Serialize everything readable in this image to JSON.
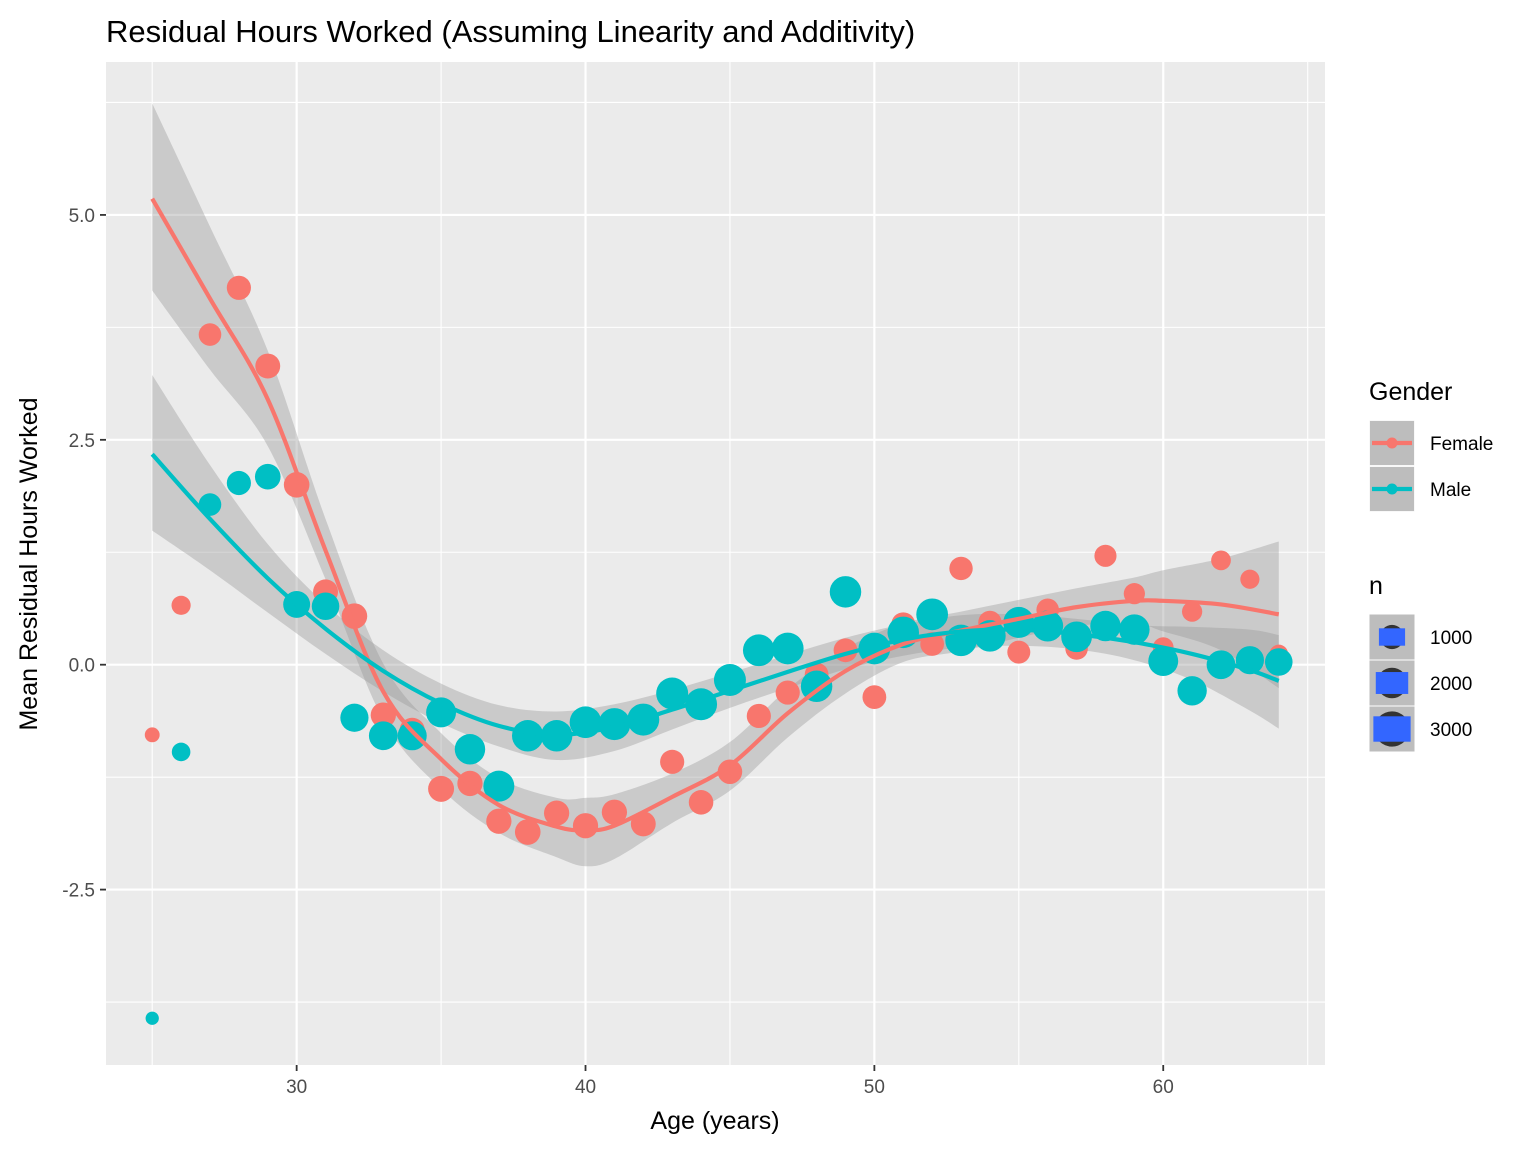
{
  "chart_data": {
    "type": "scatter",
    "title": "Residual Hours Worked (Assuming Linearity and Additivity)",
    "xlabel": "Age (years)",
    "ylabel": "Mean Residual Hours Worked",
    "xlim": [
      23.4,
      65.6
    ],
    "ylim": [
      -4.45,
      6.7
    ],
    "x_ticks": [
      30,
      40,
      50,
      60
    ],
    "x_tick_labels": [
      "30",
      "40",
      "50",
      "60"
    ],
    "y_ticks": [
      -2.5,
      0.0,
      2.5,
      5.0
    ],
    "y_tick_labels": [
      "-2.5",
      "0.0",
      "2.5",
      "5.0"
    ],
    "grid": true,
    "colors": {
      "Female": "#F8766D",
      "Male": "#00BFC4",
      "panel": "#EBEBEB",
      "ribbon": "#999999",
      "legend_size_fill": "#3366FF"
    },
    "series": [
      {
        "name": "Female",
        "points": [
          {
            "x": 25,
            "y": -0.78,
            "n": 150
          },
          {
            "x": 26,
            "y": 0.66,
            "n": 450
          },
          {
            "x": 27,
            "y": 3.67,
            "n": 800
          },
          {
            "x": 28,
            "y": 4.19,
            "n": 1000
          },
          {
            "x": 29,
            "y": 3.32,
            "n": 1100
          },
          {
            "x": 30,
            "y": 2.0,
            "n": 1200
          },
          {
            "x": 31,
            "y": 0.81,
            "n": 1100
          },
          {
            "x": 32,
            "y": 0.54,
            "n": 1200
          },
          {
            "x": 33,
            "y": -0.56,
            "n": 1150
          },
          {
            "x": 34,
            "y": -0.73,
            "n": 1150
          },
          {
            "x": 35,
            "y": -1.38,
            "n": 1250
          },
          {
            "x": 36,
            "y": -1.32,
            "n": 1150
          },
          {
            "x": 37,
            "y": -1.74,
            "n": 1150
          },
          {
            "x": 38,
            "y": -1.86,
            "n": 1200
          },
          {
            "x": 39,
            "y": -1.65,
            "n": 1150
          },
          {
            "x": 40,
            "y": -1.79,
            "n": 1150
          },
          {
            "x": 41,
            "y": -1.64,
            "n": 1150
          },
          {
            "x": 42,
            "y": -1.77,
            "n": 1100
          },
          {
            "x": 43,
            "y": -1.08,
            "n": 1000
          },
          {
            "x": 44,
            "y": -1.53,
            "n": 1050
          },
          {
            "x": 45,
            "y": -1.19,
            "n": 1050
          },
          {
            "x": 46,
            "y": -0.57,
            "n": 1000
          },
          {
            "x": 47,
            "y": -0.31,
            "n": 1000
          },
          {
            "x": 48,
            "y": -0.11,
            "n": 950
          },
          {
            "x": 49,
            "y": 0.16,
            "n": 950
          },
          {
            "x": 50,
            "y": -0.36,
            "n": 950
          },
          {
            "x": 51,
            "y": 0.45,
            "n": 950
          },
          {
            "x": 52,
            "y": 0.23,
            "n": 950
          },
          {
            "x": 53,
            "y": 1.07,
            "n": 900
          },
          {
            "x": 54,
            "y": 0.47,
            "n": 900
          },
          {
            "x": 55,
            "y": 0.14,
            "n": 850
          },
          {
            "x": 56,
            "y": 0.61,
            "n": 800
          },
          {
            "x": 57,
            "y": 0.18,
            "n": 800
          },
          {
            "x": 58,
            "y": 1.21,
            "n": 750
          },
          {
            "x": 59,
            "y": 0.79,
            "n": 650
          },
          {
            "x": 60,
            "y": 0.19,
            "n": 600
          },
          {
            "x": 61,
            "y": 0.59,
            "n": 550
          },
          {
            "x": 62,
            "y": 1.16,
            "n": 500
          },
          {
            "x": 63,
            "y": 0.95,
            "n": 450
          },
          {
            "x": 64,
            "y": 0.12,
            "n": 400
          }
        ],
        "trend": [
          {
            "x": 25,
            "y": 5.18,
            "lo": 4.16,
            "hi": 6.24
          },
          {
            "x": 27,
            "y": 4.07,
            "lo": 3.28,
            "hi": 4.87
          },
          {
            "x": 29,
            "y": 2.95,
            "lo": 2.43,
            "hi": 3.49
          },
          {
            "x": 31,
            "y": 1.27,
            "lo": 0.95,
            "hi": 1.62
          },
          {
            "x": 33,
            "y": -0.3,
            "lo": -0.61,
            "hi": 0.01
          },
          {
            "x": 35,
            "y": -1.05,
            "lo": -1.38,
            "hi": -0.76
          },
          {
            "x": 37,
            "y": -1.56,
            "lo": -1.87,
            "hi": -1.26
          },
          {
            "x": 39,
            "y": -1.8,
            "lo": -2.14,
            "hi": -1.48
          },
          {
            "x": 40,
            "y": -1.84,
            "lo": -2.24,
            "hi": -1.48
          },
          {
            "x": 41,
            "y": -1.79,
            "lo": -2.16,
            "hi": -1.44
          },
          {
            "x": 43,
            "y": -1.47,
            "lo": -1.76,
            "hi": -1.21
          },
          {
            "x": 45,
            "y": -1.12,
            "lo": -1.4,
            "hi": -0.86
          },
          {
            "x": 47,
            "y": -0.54,
            "lo": -0.81,
            "hi": -0.27
          },
          {
            "x": 49,
            "y": -0.07,
            "lo": -0.32,
            "hi": 0.18
          },
          {
            "x": 51,
            "y": 0.23,
            "lo": 0.03,
            "hi": 0.46
          },
          {
            "x": 53,
            "y": 0.38,
            "lo": 0.15,
            "hi": 0.59
          },
          {
            "x": 55,
            "y": 0.51,
            "lo": 0.3,
            "hi": 0.72
          },
          {
            "x": 57,
            "y": 0.64,
            "lo": 0.43,
            "hi": 0.85
          },
          {
            "x": 59,
            "y": 0.71,
            "lo": 0.46,
            "hi": 0.97
          },
          {
            "x": 60,
            "y": 0.71,
            "lo": 0.37,
            "hi": 1.05
          },
          {
            "x": 62,
            "y": 0.67,
            "lo": 0.16,
            "hi": 1.18
          },
          {
            "x": 64,
            "y": 0.56,
            "lo": -0.26,
            "hi": 1.37
          }
        ]
      },
      {
        "name": "Male",
        "points": [
          {
            "x": 25,
            "y": -3.93,
            "n": 80
          },
          {
            "x": 26,
            "y": -0.97,
            "n": 400
          },
          {
            "x": 27,
            "y": 1.78,
            "n": 800
          },
          {
            "x": 28,
            "y": 2.02,
            "n": 1000
          },
          {
            "x": 29,
            "y": 2.09,
            "n": 1200
          },
          {
            "x": 30,
            "y": 0.67,
            "n": 1400
          },
          {
            "x": 31,
            "y": 0.65,
            "n": 1500
          },
          {
            "x": 32,
            "y": -0.59,
            "n": 1600
          },
          {
            "x": 33,
            "y": -0.79,
            "n": 1700
          },
          {
            "x": 34,
            "y": -0.79,
            "n": 1750
          },
          {
            "x": 35,
            "y": -0.53,
            "n": 1900
          },
          {
            "x": 36,
            "y": -0.94,
            "n": 2000
          },
          {
            "x": 37,
            "y": -1.35,
            "n": 2100
          },
          {
            "x": 38,
            "y": -0.79,
            "n": 2200
          },
          {
            "x": 39,
            "y": -0.79,
            "n": 2200
          },
          {
            "x": 40,
            "y": -0.64,
            "n": 2250
          },
          {
            "x": 41,
            "y": -0.66,
            "n": 2300
          },
          {
            "x": 42,
            "y": -0.61,
            "n": 2300
          },
          {
            "x": 43,
            "y": -0.32,
            "n": 2300
          },
          {
            "x": 44,
            "y": -0.44,
            "n": 2300
          },
          {
            "x": 45,
            "y": -0.17,
            "n": 2300
          },
          {
            "x": 46,
            "y": 0.16,
            "n": 2250
          },
          {
            "x": 47,
            "y": 0.18,
            "n": 2250
          },
          {
            "x": 48,
            "y": -0.24,
            "n": 2200
          },
          {
            "x": 49,
            "y": 0.81,
            "n": 2200
          },
          {
            "x": 50,
            "y": 0.18,
            "n": 2250
          },
          {
            "x": 51,
            "y": 0.36,
            "n": 2200
          },
          {
            "x": 52,
            "y": 0.56,
            "n": 2250
          },
          {
            "x": 53,
            "y": 0.27,
            "n": 2200
          },
          {
            "x": 54,
            "y": 0.32,
            "n": 2200
          },
          {
            "x": 55,
            "y": 0.47,
            "n": 2100
          },
          {
            "x": 56,
            "y": 0.43,
            "n": 2100
          },
          {
            "x": 57,
            "y": 0.31,
            "n": 2050
          },
          {
            "x": 58,
            "y": 0.43,
            "n": 2000
          },
          {
            "x": 59,
            "y": 0.39,
            "n": 2000
          },
          {
            "x": 60,
            "y": 0.04,
            "n": 1900
          },
          {
            "x": 61,
            "y": -0.29,
            "n": 1800
          },
          {
            "x": 62,
            "y": 0.0,
            "n": 1700
          },
          {
            "x": 63,
            "y": 0.05,
            "n": 1600
          },
          {
            "x": 64,
            "y": 0.03,
            "n": 1500
          }
        ],
        "trend": [
          {
            "x": 25,
            "y": 2.34,
            "lo": 1.49,
            "hi": 3.22
          },
          {
            "x": 27,
            "y": 1.62,
            "lo": 1.05,
            "hi": 2.22
          },
          {
            "x": 29,
            "y": 0.96,
            "lo": 0.58,
            "hi": 1.34
          },
          {
            "x": 31,
            "y": 0.4,
            "lo": 0.12,
            "hi": 0.67
          },
          {
            "x": 33,
            "y": -0.07,
            "lo": -0.3,
            "hi": 0.16
          },
          {
            "x": 35,
            "y": -0.43,
            "lo": -0.65,
            "hi": -0.21
          },
          {
            "x": 37,
            "y": -0.68,
            "lo": -0.91,
            "hi": -0.45
          },
          {
            "x": 39,
            "y": -0.78,
            "lo": -1.06,
            "hi": -0.52
          },
          {
            "x": 41,
            "y": -0.69,
            "lo": -0.96,
            "hi": -0.44
          },
          {
            "x": 43,
            "y": -0.5,
            "lo": -0.72,
            "hi": -0.28
          },
          {
            "x": 45,
            "y": -0.29,
            "lo": -0.48,
            "hi": -0.09
          },
          {
            "x": 47,
            "y": -0.08,
            "lo": -0.26,
            "hi": 0.11
          },
          {
            "x": 49,
            "y": 0.12,
            "lo": -0.05,
            "hi": 0.3
          },
          {
            "x": 51,
            "y": 0.28,
            "lo": 0.1,
            "hi": 0.45
          },
          {
            "x": 53,
            "y": 0.37,
            "lo": 0.19,
            "hi": 0.55
          },
          {
            "x": 55,
            "y": 0.39,
            "lo": 0.21,
            "hi": 0.56
          },
          {
            "x": 57,
            "y": 0.34,
            "lo": 0.17,
            "hi": 0.51
          },
          {
            "x": 59,
            "y": 0.25,
            "lo": 0.05,
            "hi": 0.44
          },
          {
            "x": 61,
            "y": 0.12,
            "lo": -0.17,
            "hi": 0.42
          },
          {
            "x": 63,
            "y": -0.06,
            "lo": -0.51,
            "hi": 0.39
          },
          {
            "x": 64,
            "y": -0.18,
            "lo": -0.71,
            "hi": 0.33
          }
        ]
      }
    ],
    "legend": {
      "position": "right",
      "color_title": "Gender",
      "color_entries": [
        "Female",
        "Male"
      ],
      "size_title": "n",
      "size_entries": [
        {
          "label": "1000",
          "n": 1000
        },
        {
          "label": "2000",
          "n": 2000
        },
        {
          "label": "3000",
          "n": 3000
        }
      ]
    }
  }
}
